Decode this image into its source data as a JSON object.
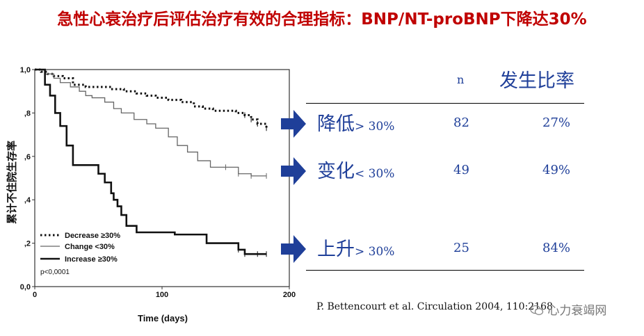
{
  "title": "急性心衰治疗后评估治疗有效的合理指标：BNP/NT-proBNP下降达30%",
  "table": {
    "header_n": "n",
    "header_rate": "发生比率",
    "rows": [
      {
        "label": "降低",
        "range": "> 30%",
        "n": "82",
        "rate": "27%"
      },
      {
        "label": "变化",
        "range": "< 30%",
        "n": "49",
        "rate": "49%"
      },
      {
        "label": "上升",
        "range": "> 30%",
        "n": "25",
        "rate": "84%"
      }
    ]
  },
  "citation": "P. Bettencourt et al. Circulation 2004, 110:2168",
  "watermark": "心力衰竭网",
  "colors": {
    "title": "#c00000",
    "table_text": "#1f3f99",
    "arrow": "#1f3f99"
  },
  "chart_data": {
    "type": "line",
    "title": "",
    "xlabel": "Time (days)",
    "ylabel": "累计不住院生存率",
    "xlim": [
      0,
      200
    ],
    "ylim": [
      0,
      1
    ],
    "x_ticks": [
      0,
      100,
      200
    ],
    "x_tick_labels": [
      "0",
      "100",
      "200"
    ],
    "y_ticks": [
      0,
      0.2,
      0.4,
      0.6,
      0.8,
      1.0
    ],
    "y_tick_labels": [
      "0,0",
      ",2",
      ",4",
      ",6",
      ",8",
      "1,0"
    ],
    "legend": [
      "Decrease ≥30%",
      "Change <30%",
      "Increase ≥30%"
    ],
    "pvalue_text": "p<0,0001",
    "series": [
      {
        "name": "Decrease ≥30%",
        "style": "dotted",
        "x": [
          0,
          5,
          10,
          15,
          22,
          30,
          40,
          50,
          60,
          70,
          80,
          88,
          95,
          105,
          115,
          125,
          132,
          140,
          150,
          158,
          165,
          170,
          175,
          182
        ],
        "y": [
          1.0,
          0.99,
          0.98,
          0.97,
          0.96,
          0.93,
          0.92,
          0.92,
          0.91,
          0.9,
          0.89,
          0.88,
          0.87,
          0.86,
          0.85,
          0.83,
          0.82,
          0.81,
          0.81,
          0.8,
          0.79,
          0.77,
          0.75,
          0.73
        ]
      },
      {
        "name": "Change <30%",
        "style": "solid-thin",
        "x": [
          0,
          8,
          15,
          20,
          28,
          35,
          40,
          45,
          55,
          62,
          68,
          78,
          88,
          95,
          105,
          112,
          120,
          128,
          138,
          150,
          160,
          170,
          182
        ],
        "y": [
          1.0,
          0.98,
          0.96,
          0.94,
          0.92,
          0.9,
          0.88,
          0.87,
          0.85,
          0.82,
          0.8,
          0.77,
          0.75,
          0.73,
          0.69,
          0.65,
          0.62,
          0.58,
          0.55,
          0.55,
          0.52,
          0.51,
          0.51
        ]
      },
      {
        "name": "Increase ≥30%",
        "style": "solid-thick",
        "x": [
          0,
          8,
          12,
          16,
          20,
          25,
          30,
          40,
          50,
          55,
          60,
          62,
          65,
          68,
          72,
          80,
          90,
          100,
          110,
          125,
          135,
          145,
          155,
          160,
          165,
          175,
          182
        ],
        "y": [
          1.0,
          0.93,
          0.88,
          0.8,
          0.74,
          0.65,
          0.56,
          0.56,
          0.52,
          0.48,
          0.43,
          0.4,
          0.37,
          0.33,
          0.28,
          0.25,
          0.25,
          0.25,
          0.24,
          0.24,
          0.2,
          0.2,
          0.2,
          0.17,
          0.15,
          0.15,
          0.15
        ]
      }
    ]
  }
}
